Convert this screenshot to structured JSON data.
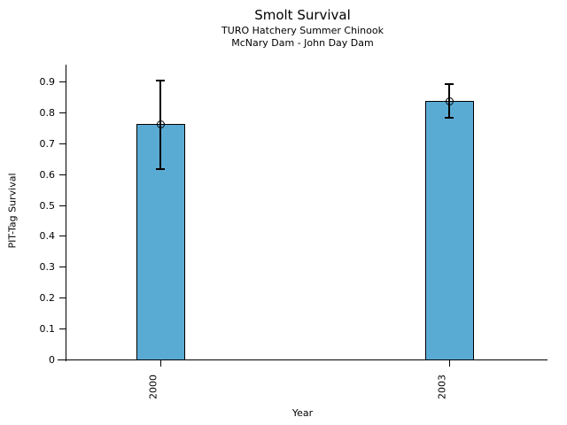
{
  "figure": {
    "title": "Smolt Survival",
    "subtitle_line1": "TURO Hatchery Summer Chinook",
    "subtitle_line2": "McNary Dam - John Day Dam",
    "xlabel": "Year",
    "ylabel": "PIT-Tag Survival"
  },
  "chart_data": {
    "type": "bar",
    "title": "Smolt Survival",
    "subtitle": [
      "TURO Hatchery Summer Chinook",
      "McNary Dam - John Day Dam"
    ],
    "xlabel": "Year",
    "ylabel": "PIT-Tag Survival",
    "categories": [
      "2000",
      "2003"
    ],
    "series": [
      {
        "name": "PIT-Tag Survival",
        "values": [
          0.765,
          0.84
        ],
        "error_low": [
          0.62,
          0.785
        ],
        "error_high": [
          0.905,
          0.895
        ]
      }
    ],
    "ylim": [
      0,
      0.9
    ],
    "yticks": [
      0,
      0.1,
      0.2,
      0.3,
      0.4,
      0.5,
      0.6,
      0.7,
      0.8,
      0.9
    ],
    "grid": false,
    "legend_position": "none",
    "bar_color": "#5aabd4",
    "bar_edge_color": "#000000",
    "error_bar_color": "#000000",
    "marker": "open-circle"
  }
}
